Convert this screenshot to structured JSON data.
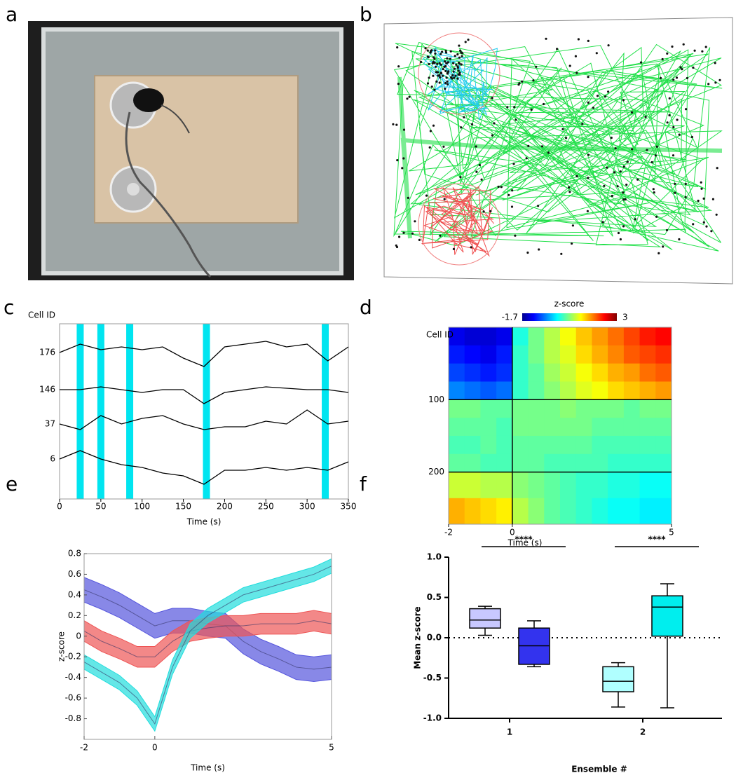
{
  "chart_data": [
    {
      "type": "photo",
      "label": "a"
    },
    {
      "type": "trajectory",
      "label": "b"
    },
    {
      "type": "trace",
      "label": "c",
      "ylabel": "Cell ID",
      "xlabel": "Time (s)",
      "xlim": [
        0,
        350
      ],
      "xticks": [
        0,
        50,
        100,
        150,
        200,
        250,
        300,
        350
      ],
      "highlights": [
        25,
        50,
        85,
        178,
        322
      ],
      "highlight_color": "#00e5f0",
      "x": [
        0,
        25,
        50,
        75,
        100,
        125,
        150,
        175,
        200,
        225,
        250,
        275,
        300,
        325,
        350
      ],
      "series": [
        {
          "name": "176",
          "color": "#000000",
          "values": [
            0,
            0.3,
            0.1,
            0.2,
            0.1,
            0.2,
            -0.2,
            -0.5,
            0.2,
            0.3,
            0.4,
            0.2,
            0.3,
            -0.3,
            0.2
          ]
        },
        {
          "name": "146",
          "color": "#000000",
          "values": [
            0,
            0,
            0.1,
            0,
            -0.1,
            0,
            0,
            -0.5,
            -0.1,
            0,
            0.1,
            0.05,
            0,
            0,
            -0.1
          ]
        },
        {
          "name": "37",
          "color": "#000000",
          "values": [
            0,
            -0.2,
            0.3,
            0,
            0.2,
            0.3,
            0,
            -0.2,
            -0.1,
            -0.1,
            0.1,
            0,
            0.5,
            0,
            0.1
          ]
        },
        {
          "name": "6",
          "color": "#000000",
          "values": [
            0,
            0.3,
            0,
            -0.2,
            -0.3,
            -0.5,
            -0.6,
            -0.9,
            -0.4,
            -0.4,
            -0.3,
            -0.4,
            -0.3,
            -0.4,
            -0.1
          ]
        }
      ]
    },
    {
      "type": "heatmap",
      "label": "d",
      "colorbar_label": "z-score",
      "clim": [
        -1.7,
        3
      ],
      "cticks": [
        -1.7,
        3
      ],
      "ylabel": "Cell ID",
      "xlabel": "Time (s)",
      "xlim": [
        -2,
        5
      ],
      "xticks": [
        -2,
        0,
        5
      ],
      "ylim": [
        0,
        272
      ],
      "yticks": [
        100,
        200
      ],
      "col_edges": [
        -2,
        -1.5,
        -1,
        -0.5,
        0,
        0.5,
        1,
        1.5,
        2,
        2.5,
        3,
        3.5,
        4,
        4.5,
        5
      ],
      "row_edges": [
        0,
        25,
        50,
        75,
        100,
        125,
        150,
        175,
        200,
        236,
        272
      ],
      "z": [
        [
          -1.2,
          -1.3,
          -1.3,
          -1.2,
          0.2,
          0.6,
          0.9,
          1.2,
          1.5,
          1.7,
          1.9,
          2.1,
          2.3,
          2.4
        ],
        [
          -1.0,
          -1.1,
          -1.2,
          -1.0,
          0.3,
          0.6,
          0.9,
          1.1,
          1.4,
          1.6,
          1.8,
          2.0,
          2.1,
          2.2
        ],
        [
          -0.8,
          -0.9,
          -1.0,
          -0.9,
          0.3,
          0.5,
          0.8,
          1.0,
          1.2,
          1.4,
          1.6,
          1.7,
          1.9,
          2.0
        ],
        [
          -0.5,
          -0.6,
          -0.7,
          -0.6,
          0.3,
          0.5,
          0.7,
          0.9,
          1.1,
          1.2,
          1.4,
          1.5,
          1.6,
          1.7
        ],
        [
          0.6,
          0.6,
          0.5,
          0.5,
          0.6,
          0.6,
          0.6,
          0.7,
          0.6,
          0.6,
          0.6,
          0.5,
          0.6,
          0.6
        ],
        [
          0.5,
          0.5,
          0.5,
          0.4,
          0.6,
          0.6,
          0.6,
          0.6,
          0.6,
          0.5,
          0.5,
          0.5,
          0.5,
          0.5
        ],
        [
          0.4,
          0.4,
          0.5,
          0.4,
          0.5,
          0.5,
          0.5,
          0.5,
          0.5,
          0.4,
          0.4,
          0.4,
          0.4,
          0.4
        ],
        [
          0.5,
          0.5,
          0.4,
          0.4,
          0.5,
          0.5,
          0.4,
          0.4,
          0.4,
          0.4,
          0.3,
          0.3,
          0.3,
          0.3
        ],
        [
          1.0,
          1.0,
          0.9,
          0.9,
          0.7,
          0.6,
          0.5,
          0.4,
          0.3,
          0.3,
          0.2,
          0.2,
          0.1,
          0.1
        ],
        [
          1.6,
          1.5,
          1.4,
          1.3,
          0.9,
          0.7,
          0.5,
          0.4,
          0.3,
          0.2,
          0.1,
          0.1,
          0.0,
          0.0
        ]
      ]
    },
    {
      "type": "band",
      "label": "e",
      "ylabel": "z-score",
      "xlabel": "Time (s)",
      "xlim": [
        -2,
        5
      ],
      "xticks": [
        -2,
        0,
        5
      ],
      "ylim": [
        -1,
        0.8
      ],
      "yticks": [
        0.8,
        0.6,
        0.4,
        0.2,
        0,
        -0.2,
        -0.4,
        -0.6,
        -0.8
      ],
      "x": [
        -2,
        -1.5,
        -1,
        -0.5,
        0,
        0.5,
        1,
        1.5,
        2,
        2.5,
        3,
        3.5,
        4,
        4.5,
        5
      ],
      "series": [
        {
          "color": "#5555dd",
          "values": [
            0.45,
            0.38,
            0.3,
            0.2,
            0.1,
            0.15,
            0.15,
            0.12,
            0.1,
            -0.05,
            -0.15,
            -0.22,
            -0.3,
            -0.32,
            -0.3
          ],
          "errors": [
            0.12,
            0.12,
            0.12,
            0.12,
            0.12,
            0.12,
            0.12,
            0.12,
            0.12,
            0.12,
            0.12,
            0.12,
            0.12,
            0.12,
            0.12
          ]
        },
        {
          "color": "#ee5555",
          "values": [
            0.05,
            -0.05,
            -0.12,
            -0.2,
            -0.2,
            -0.05,
            0.05,
            0.08,
            0.1,
            0.1,
            0.12,
            0.12,
            0.12,
            0.15,
            0.12
          ],
          "errors": [
            0.1,
            0.1,
            0.1,
            0.1,
            0.1,
            0.1,
            0.1,
            0.1,
            0.1,
            0.1,
            0.1,
            0.1,
            0.1,
            0.1,
            0.1
          ]
        },
        {
          "color": "#22dddd",
          "values": [
            -0.25,
            -0.35,
            -0.45,
            -0.6,
            -0.85,
            -0.3,
            0.05,
            0.2,
            0.3,
            0.4,
            0.45,
            0.5,
            0.55,
            0.6,
            0.68
          ],
          "errors": [
            0.07,
            0.07,
            0.07,
            0.07,
            0.07,
            0.07,
            0.07,
            0.07,
            0.07,
            0.07,
            0.07,
            0.07,
            0.07,
            0.07,
            0.07
          ]
        }
      ]
    },
    {
      "type": "box",
      "label": "f",
      "ylabel": "Mean z-score",
      "xlabel": "Ensemble #",
      "categories": [
        "1",
        "2"
      ],
      "ylim": [
        -1,
        1
      ],
      "yticks": [
        {
          "value": 1,
          "label": "1.0"
        },
        {
          "value": 0.5,
          "label": "0.5"
        },
        {
          "value": 0,
          "label": "0.0"
        },
        {
          "value": -0.5,
          "label": "-0.5"
        },
        {
          "value": -1,
          "label": "-1.0"
        }
      ],
      "refline": 0,
      "annotations": [
        "****",
        "****"
      ],
      "series": [
        {
          "colors": [
            "#c8c8ff",
            "#b0ffff"
          ],
          "min": [
            0.03,
            -0.86
          ],
          "q1": [
            0.12,
            -0.67
          ],
          "median": [
            0.22,
            -0.54
          ],
          "q3": [
            0.36,
            -0.36
          ],
          "max": [
            0.39,
            -0.31
          ]
        },
        {
          "colors": [
            "#3333ee",
            "#00eeee"
          ],
          "min": [
            -0.36,
            -0.87
          ],
          "q1": [
            -0.33,
            0.02
          ],
          "median": [
            -0.1,
            0.38
          ],
          "q3": [
            0.12,
            0.52
          ],
          "max": [
            0.21,
            0.67
          ]
        }
      ]
    }
  ]
}
